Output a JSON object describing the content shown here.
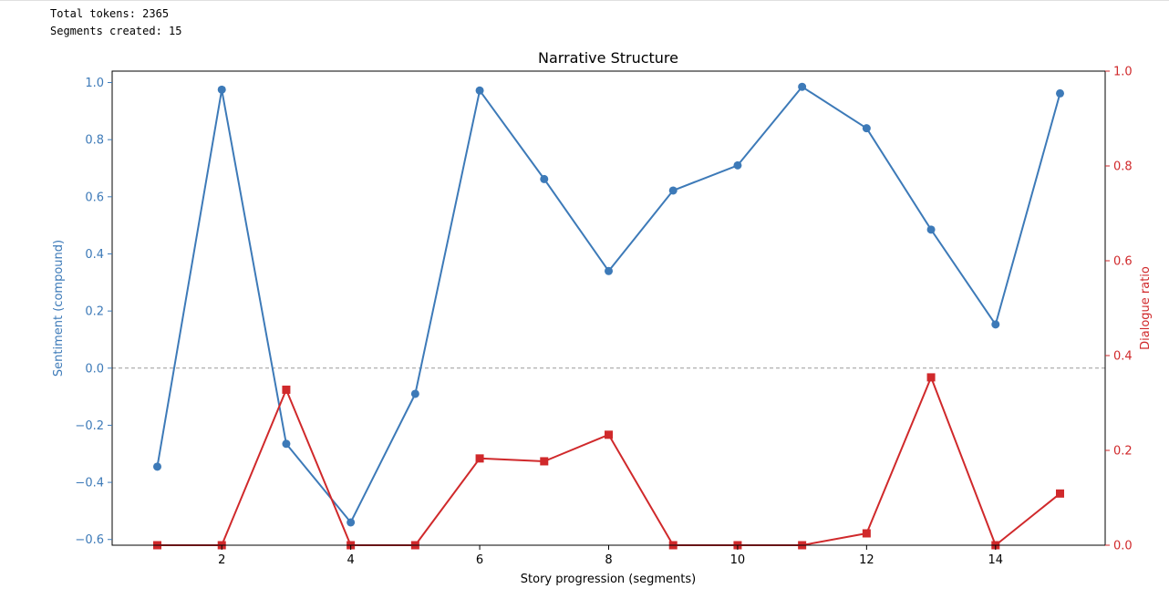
{
  "output": {
    "lines": [
      "Total tokens: 2365",
      "Segments created: 15"
    ]
  },
  "colors": {
    "sentiment": "#3d7ab8",
    "dialogue": "#d0292b",
    "zero_line": "#999999",
    "axis": "#000000"
  },
  "chart_data": {
    "type": "line",
    "title": "Narrative Structure",
    "xlabel": "Story progression (segments)",
    "ylabel_left": "Sentiment (compound)",
    "ylabel_right": "Dialogue ratio",
    "x": [
      1,
      2,
      3,
      4,
      5,
      6,
      7,
      8,
      9,
      10,
      11,
      12,
      13,
      14,
      15
    ],
    "xlim": [
      0.3,
      15.7
    ],
    "ylim_left": [
      -0.62,
      1.04
    ],
    "ylim_right": [
      0.0,
      1.0
    ],
    "x_ticks": [
      2,
      4,
      6,
      8,
      10,
      12,
      14
    ],
    "x_tick_labels": [
      "2",
      "4",
      "6",
      "8",
      "10",
      "12",
      "14"
    ],
    "y_left_ticks": [
      -0.6,
      -0.4,
      -0.2,
      0.0,
      0.2,
      0.4,
      0.6,
      0.8,
      1.0
    ],
    "y_left_tick_labels": [
      "−0.6",
      "−0.4",
      "−0.2",
      "0.0",
      "0.2",
      "0.4",
      "0.6",
      "0.8",
      "1.0"
    ],
    "y_right_ticks": [
      0.0,
      0.2,
      0.4,
      0.6,
      0.8,
      1.0
    ],
    "y_right_tick_labels": [
      "0.0",
      "0.2",
      "0.4",
      "0.6",
      "0.8",
      "1.0"
    ],
    "reference_line": {
      "axis": "left",
      "y": 0.0,
      "style": "dashed"
    },
    "grid": false,
    "series": [
      {
        "axis": "left",
        "marker": "circle",
        "values": [
          -0.345,
          0.975,
          -0.265,
          -0.54,
          -0.09,
          0.972,
          0.662,
          0.34,
          0.622,
          0.71,
          0.985,
          0.84,
          0.485,
          0.153,
          0.962
        ]
      },
      {
        "axis": "right",
        "marker": "square",
        "values": [
          0.0,
          0.0,
          0.328,
          0.0,
          0.0,
          0.183,
          0.177,
          0.233,
          0.0,
          0.0,
          0.0,
          0.025,
          0.354,
          0.0,
          0.109
        ]
      }
    ]
  }
}
